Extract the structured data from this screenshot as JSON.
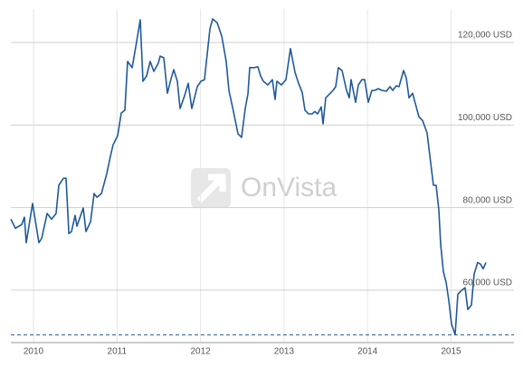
{
  "chart_data": {
    "type": "line",
    "watermark": "OnVista",
    "x": [
      2009.729,
      2009.783,
      2009.859,
      2009.892,
      2009.913,
      2009.989,
      2010.065,
      2010.098,
      2010.163,
      2010.217,
      2010.271,
      2010.303,
      2010.358,
      2010.39,
      2010.423,
      2010.455,
      2010.498,
      2010.52,
      2010.596,
      2010.628,
      2010.683,
      2010.726,
      2010.758,
      2010.813,
      2010.878,
      2010.921,
      2010.953,
      2011.008,
      2011.051,
      2011.094,
      2011.127,
      2011.181,
      2011.224,
      2011.278,
      2011.311,
      2011.354,
      2011.398,
      2011.441,
      2011.495,
      2011.517,
      2011.56,
      2011.603,
      2011.647,
      2011.679,
      2011.723,
      2011.755,
      2011.809,
      2011.853,
      2011.896,
      2011.961,
      2012.004,
      2012.048,
      2012.113,
      2012.145,
      2012.199,
      2012.254,
      2012.308,
      2012.34,
      2012.394,
      2012.449,
      2012.492,
      2012.535,
      2012.568,
      2012.589,
      2012.644,
      2012.687,
      2012.719,
      2012.752,
      2012.806,
      2012.86,
      2012.893,
      2012.914,
      2012.969,
      2013.023,
      2013.077,
      2013.131,
      2013.174,
      2013.218,
      2013.25,
      2013.294,
      2013.337,
      2013.369,
      2013.402,
      2013.445,
      2013.467,
      2013.499,
      2013.554,
      2013.586,
      2013.619,
      2013.651,
      2013.694,
      2013.749,
      2013.781,
      2013.803,
      2013.857,
      2013.889,
      2013.933,
      2013.965,
      2014.009,
      2014.052,
      2014.085,
      2014.128,
      2014.171,
      2014.225,
      2014.269,
      2014.301,
      2014.345,
      2014.377,
      2014.431,
      2014.464,
      2014.496,
      2014.54,
      2014.583,
      2014.615,
      2014.659,
      2014.713,
      2014.756,
      2014.789,
      2014.821,
      2014.854,
      2014.875,
      2014.908,
      2014.94,
      2014.973,
      2015.005,
      2015.049,
      2015.081,
      2015.124,
      2015.168,
      2015.2,
      2015.244,
      2015.276,
      2015.319,
      2015.352,
      2015.385,
      2015.417
    ],
    "series": [
      {
        "color": "#1f5a9a",
        "values": [
          77200,
          75000,
          75900,
          77700,
          71500,
          81000,
          71500,
          72600,
          78600,
          77200,
          78600,
          85400,
          87100,
          87100,
          73700,
          74200,
          78100,
          75500,
          79900,
          74200,
          76600,
          83400,
          82500,
          83400,
          88200,
          92400,
          95200,
          97400,
          102900,
          103600,
          115400,
          113900,
          118900,
          125500,
          110600,
          111900,
          115400,
          113000,
          115000,
          116700,
          116300,
          107700,
          111200,
          113400,
          110600,
          104000,
          107100,
          110100,
          104000,
          109300,
          110600,
          111000,
          123300,
          125700,
          124800,
          121500,
          115400,
          108400,
          103300,
          97900,
          97000,
          104000,
          107500,
          113900,
          113900,
          114100,
          111900,
          110600,
          109700,
          111000,
          106200,
          110600,
          109700,
          111000,
          118500,
          112800,
          110100,
          107900,
          103600,
          102700,
          102700,
          103300,
          102700,
          104400,
          100300,
          106600,
          107700,
          108400,
          109300,
          113900,
          113200,
          108400,
          106600,
          111000,
          105500,
          109700,
          111000,
          111000,
          105500,
          108400,
          108400,
          108800,
          108400,
          108200,
          109300,
          108400,
          109500,
          109300,
          113200,
          111400,
          106600,
          107700,
          104400,
          102000,
          101100,
          98100,
          90800,
          85400,
          85400,
          79400,
          71100,
          64500,
          61900,
          57500,
          51800,
          49200,
          59000,
          59900,
          60600,
          55300,
          56400,
          63900,
          66700,
          66300,
          65200,
          66700
        ]
      }
    ],
    "min_line": 49200,
    "xlim": [
      2009.729,
      2015.753
    ],
    "xticks": [
      2010,
      2011,
      2012,
      2013,
      2014,
      2015
    ],
    "ylim": [
      47300,
      128100
    ],
    "yticks": [
      {
        "value": 60000,
        "label": "60,000 USD"
      },
      {
        "value": 80000,
        "label": "80,000 USD"
      },
      {
        "value": 100000,
        "label": "100,000 USD"
      },
      {
        "value": 120000,
        "label": "120,000 USD"
      }
    ],
    "grid": true
  }
}
